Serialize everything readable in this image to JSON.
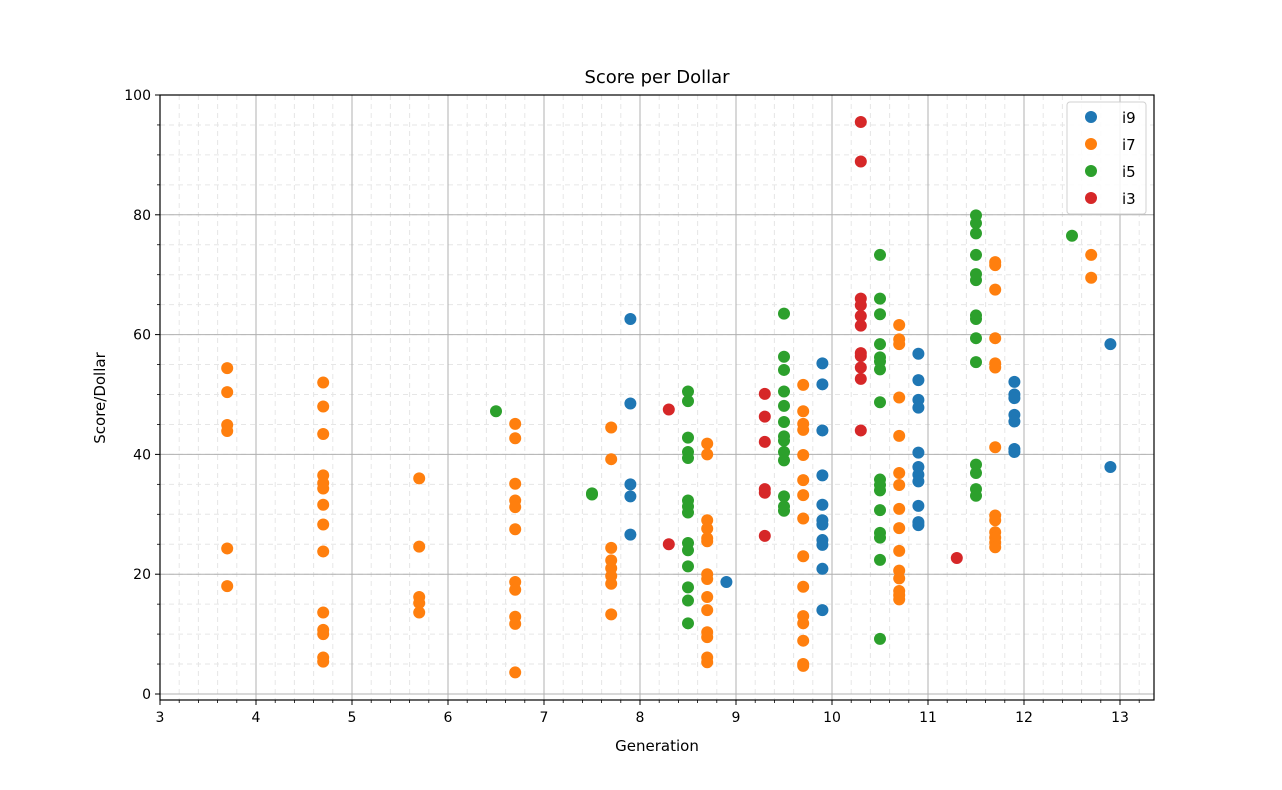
{
  "chart_data": {
    "type": "scatter",
    "title": "Score per Dollar",
    "xlabel": "Generation",
    "ylabel": "Score/Dollar",
    "xlim": [
      3,
      13.35
    ],
    "ylim": [
      -1,
      100
    ],
    "xticks": [
      3,
      4,
      5,
      6,
      7,
      8,
      9,
      10,
      11,
      12,
      13
    ],
    "yticks": [
      0,
      20,
      40,
      60,
      80,
      100
    ],
    "grid": {
      "major": true,
      "minor": true
    },
    "legend_position": "upper right",
    "series": [
      {
        "name": "i9",
        "color": "#1f77b4",
        "points": [
          [
            7.9,
            62.6
          ],
          [
            7.9,
            48.5
          ],
          [
            7.9,
            35.0
          ],
          [
            7.9,
            33.0
          ],
          [
            7.9,
            26.6
          ],
          [
            8.9,
            18.7
          ],
          [
            9.9,
            55.2
          ],
          [
            9.9,
            51.7
          ],
          [
            9.9,
            44.0
          ],
          [
            9.9,
            36.5
          ],
          [
            9.9,
            31.6
          ],
          [
            9.9,
            29.0
          ],
          [
            9.9,
            28.3
          ],
          [
            9.9,
            25.7
          ],
          [
            9.9,
            24.9
          ],
          [
            9.9,
            20.9
          ],
          [
            9.9,
            14.0
          ],
          [
            10.9,
            56.8
          ],
          [
            10.9,
            52.4
          ],
          [
            10.9,
            49.1
          ],
          [
            10.9,
            47.8
          ],
          [
            10.9,
            40.3
          ],
          [
            10.9,
            37.9
          ],
          [
            10.9,
            36.6
          ],
          [
            10.9,
            35.5
          ],
          [
            10.9,
            31.4
          ],
          [
            10.9,
            28.7
          ],
          [
            10.9,
            28.2
          ],
          [
            11.9,
            52.1
          ],
          [
            11.9,
            50.0
          ],
          [
            11.9,
            49.4
          ],
          [
            11.9,
            46.6
          ],
          [
            11.9,
            45.5
          ],
          [
            11.9,
            40.9
          ],
          [
            11.9,
            40.4
          ],
          [
            12.9,
            58.4
          ],
          [
            12.9,
            37.9
          ]
        ]
      },
      {
        "name": "i7",
        "color": "#ff7f0e",
        "points": [
          [
            3.7,
            54.4
          ],
          [
            3.7,
            50.4
          ],
          [
            3.7,
            44.9
          ],
          [
            3.7,
            43.9
          ],
          [
            3.7,
            24.3
          ],
          [
            3.7,
            18.0
          ],
          [
            4.7,
            52.0
          ],
          [
            4.7,
            48.0
          ],
          [
            4.7,
            43.4
          ],
          [
            4.7,
            36.5
          ],
          [
            4.7,
            35.2
          ],
          [
            4.7,
            34.3
          ],
          [
            4.7,
            31.6
          ],
          [
            4.7,
            28.3
          ],
          [
            4.7,
            23.8
          ],
          [
            4.7,
            13.6
          ],
          [
            4.7,
            10.7
          ],
          [
            4.7,
            10.0
          ],
          [
            4.7,
            6.1
          ],
          [
            4.7,
            5.4
          ],
          [
            5.7,
            36.0
          ],
          [
            5.7,
            24.6
          ],
          [
            5.7,
            16.2
          ],
          [
            5.7,
            15.2
          ],
          [
            5.7,
            13.6
          ],
          [
            6.7,
            45.1
          ],
          [
            6.7,
            42.7
          ],
          [
            6.7,
            35.1
          ],
          [
            6.7,
            32.3
          ],
          [
            6.7,
            31.2
          ],
          [
            6.7,
            27.5
          ],
          [
            6.7,
            18.7
          ],
          [
            6.7,
            17.4
          ],
          [
            6.7,
            12.9
          ],
          [
            6.7,
            11.7
          ],
          [
            6.7,
            3.6
          ],
          [
            7.7,
            44.5
          ],
          [
            7.7,
            39.2
          ],
          [
            7.7,
            24.4
          ],
          [
            7.7,
            22.3
          ],
          [
            7.7,
            21.0
          ],
          [
            7.7,
            19.7
          ],
          [
            7.7,
            18.4
          ],
          [
            7.7,
            13.3
          ],
          [
            8.7,
            41.8
          ],
          [
            8.7,
            40.0
          ],
          [
            8.7,
            29.0
          ],
          [
            8.7,
            27.6
          ],
          [
            8.7,
            26.0
          ],
          [
            8.7,
            25.5
          ],
          [
            8.7,
            20.0
          ],
          [
            8.7,
            19.2
          ],
          [
            8.7,
            16.2
          ],
          [
            8.7,
            14.0
          ],
          [
            8.7,
            10.3
          ],
          [
            8.7,
            9.5
          ],
          [
            8.7,
            6.1
          ],
          [
            8.7,
            5.3
          ],
          [
            9.7,
            51.6
          ],
          [
            9.7,
            47.2
          ],
          [
            9.7,
            45.1
          ],
          [
            9.7,
            44.1
          ],
          [
            9.7,
            39.9
          ],
          [
            9.7,
            35.7
          ],
          [
            9.7,
            33.2
          ],
          [
            9.7,
            29.3
          ],
          [
            9.7,
            23.0
          ],
          [
            9.7,
            17.9
          ],
          [
            9.7,
            13.0
          ],
          [
            9.7,
            11.8
          ],
          [
            9.7,
            8.9
          ],
          [
            9.7,
            5.0
          ],
          [
            9.7,
            4.7
          ],
          [
            10.7,
            61.6
          ],
          [
            10.7,
            59.2
          ],
          [
            10.7,
            58.4
          ],
          [
            10.7,
            49.5
          ],
          [
            10.7,
            43.1
          ],
          [
            10.7,
            36.9
          ],
          [
            10.7,
            34.9
          ],
          [
            10.7,
            30.9
          ],
          [
            10.7,
            27.7
          ],
          [
            10.7,
            23.9
          ],
          [
            10.7,
            20.6
          ],
          [
            10.7,
            19.3
          ],
          [
            10.7,
            17.2
          ],
          [
            10.7,
            16.5
          ],
          [
            10.7,
            15.8
          ],
          [
            11.7,
            72.1
          ],
          [
            11.7,
            71.6
          ],
          [
            11.7,
            67.5
          ],
          [
            11.7,
            59.4
          ],
          [
            11.7,
            55.2
          ],
          [
            11.7,
            54.5
          ],
          [
            11.7,
            41.2
          ],
          [
            11.7,
            29.8
          ],
          [
            11.7,
            29.0
          ],
          [
            11.7,
            27.0
          ],
          [
            11.7,
            26.1
          ],
          [
            11.7,
            25.3
          ],
          [
            11.7,
            24.5
          ],
          [
            12.7,
            73.3
          ],
          [
            12.7,
            69.5
          ]
        ]
      },
      {
        "name": "i5",
        "color": "#2ca02c",
        "points": [
          [
            6.5,
            47.2
          ],
          [
            7.5,
            33.5
          ],
          [
            7.5,
            33.3
          ],
          [
            8.5,
            50.5
          ],
          [
            8.5,
            48.9
          ],
          [
            8.5,
            42.8
          ],
          [
            8.5,
            40.4
          ],
          [
            8.5,
            39.4
          ],
          [
            8.5,
            32.3
          ],
          [
            8.5,
            31.3
          ],
          [
            8.5,
            30.3
          ],
          [
            8.5,
            25.2
          ],
          [
            8.5,
            24.0
          ],
          [
            8.5,
            21.3
          ],
          [
            8.5,
            17.8
          ],
          [
            8.5,
            15.6
          ],
          [
            8.5,
            11.8
          ],
          [
            9.5,
            63.5
          ],
          [
            9.5,
            56.3
          ],
          [
            9.5,
            54.1
          ],
          [
            9.5,
            50.5
          ],
          [
            9.5,
            48.1
          ],
          [
            9.5,
            45.4
          ],
          [
            9.5,
            43.0
          ],
          [
            9.5,
            42.3
          ],
          [
            9.5,
            40.4
          ],
          [
            9.5,
            39.0
          ],
          [
            9.5,
            33.0
          ],
          [
            9.5,
            31.3
          ],
          [
            9.5,
            30.6
          ],
          [
            10.5,
            73.3
          ],
          [
            10.5,
            66.0
          ],
          [
            10.5,
            63.4
          ],
          [
            10.5,
            58.4
          ],
          [
            10.5,
            56.2
          ],
          [
            10.5,
            55.5
          ],
          [
            10.5,
            54.2
          ],
          [
            10.5,
            48.7
          ],
          [
            10.5,
            35.8
          ],
          [
            10.5,
            34.9
          ],
          [
            10.5,
            34.0
          ],
          [
            10.5,
            30.7
          ],
          [
            10.5,
            26.9
          ],
          [
            10.5,
            26.1
          ],
          [
            10.5,
            22.4
          ],
          [
            10.5,
            9.2
          ],
          [
            11.5,
            79.9
          ],
          [
            11.5,
            78.6
          ],
          [
            11.5,
            76.9
          ],
          [
            11.5,
            73.3
          ],
          [
            11.5,
            70.1
          ],
          [
            11.5,
            69.1
          ],
          [
            11.5,
            63.2
          ],
          [
            11.5,
            62.6
          ],
          [
            11.5,
            59.4
          ],
          [
            11.5,
            55.4
          ],
          [
            11.5,
            38.3
          ],
          [
            11.5,
            36.9
          ],
          [
            11.5,
            34.2
          ],
          [
            11.5,
            33.1
          ],
          [
            12.5,
            76.5
          ]
        ]
      },
      {
        "name": "i3",
        "color": "#d62728",
        "points": [
          [
            8.3,
            47.5
          ],
          [
            8.3,
            25.0
          ],
          [
            9.3,
            50.1
          ],
          [
            9.3,
            46.3
          ],
          [
            9.3,
            42.1
          ],
          [
            9.3,
            34.2
          ],
          [
            9.3,
            33.6
          ],
          [
            9.3,
            26.4
          ],
          [
            10.3,
            95.5
          ],
          [
            10.3,
            88.9
          ],
          [
            10.3,
            66.0
          ],
          [
            10.3,
            64.9
          ],
          [
            10.3,
            63.1
          ],
          [
            10.3,
            61.5
          ],
          [
            10.3,
            56.9
          ],
          [
            10.3,
            56.4
          ],
          [
            10.3,
            54.5
          ],
          [
            10.3,
            52.6
          ],
          [
            10.3,
            44.0
          ],
          [
            11.3,
            22.7
          ]
        ]
      }
    ]
  }
}
